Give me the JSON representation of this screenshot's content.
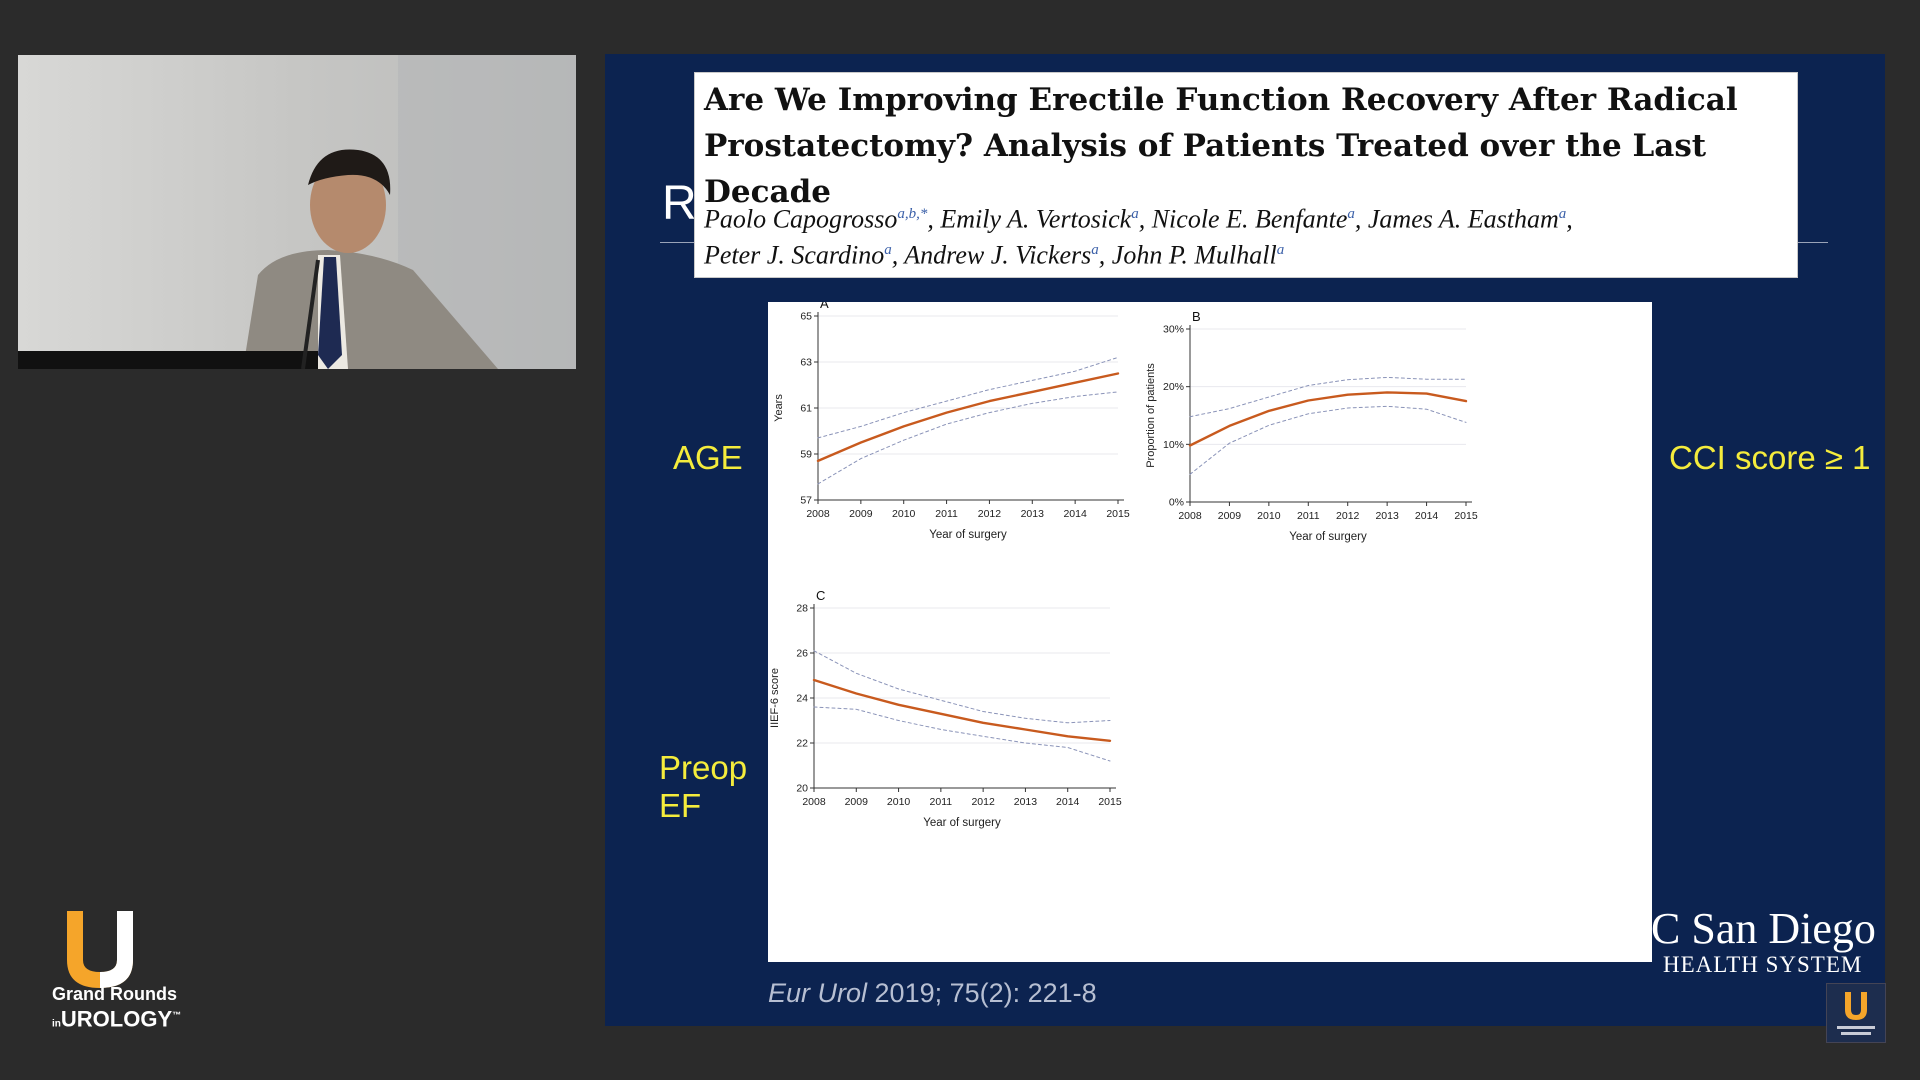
{
  "slide": {
    "heading_fragment": "R",
    "paper_title": "Are We Improving Erectile Function Recovery After Radical Prostatectomy? Analysis of Patients Treated over the Last Decade",
    "authors_line1": [
      {
        "name": "Paolo Capogrosso",
        "aff": "a,b,*"
      },
      {
        "name": "Emily A. Vertosick",
        "aff": "a"
      },
      {
        "name": "Nicole E. Benfante",
        "aff": "a"
      },
      {
        "name": "James A. Eastham",
        "aff": "a"
      }
    ],
    "authors_line2": [
      {
        "name": "Peter J. Scardino",
        "aff": "a"
      },
      {
        "name": "Andrew J. Vickers",
        "aff": "a"
      },
      {
        "name": "John P. Mulhall",
        "aff": "a"
      }
    ],
    "label_age": "AGE",
    "label_cci": "CCI score ≥ 1",
    "label_ef_line1": "Preop",
    "label_ef_line2": "EF",
    "citation_journal": "Eur Urol",
    "citation_rest": " 2019; 75(2): 221-8",
    "logo_line1": "C San Diego",
    "logo_line2": "HEALTH SYSTEM"
  },
  "branding": {
    "line1": "Grand Rounds",
    "line2_small": "in",
    "line2": "UROLOGY",
    "mark": "™",
    "accent_color": "#f5a52a"
  },
  "chart_data": [
    {
      "type": "line",
      "panel": "A",
      "xlabel": "Year of surgery",
      "ylabel": "Years",
      "x": [
        2008,
        2009,
        2010,
        2011,
        2012,
        2013,
        2014,
        2015
      ],
      "yticks": [
        "57",
        "59",
        "61",
        "63",
        "65"
      ],
      "ylim": [
        57,
        65
      ],
      "series": [
        {
          "role": "estimate",
          "values": [
            58.7,
            59.5,
            60.2,
            60.8,
            61.3,
            61.7,
            62.1,
            62.5
          ]
        },
        {
          "role": "ci_upper",
          "values": [
            59.7,
            60.2,
            60.8,
            61.3,
            61.8,
            62.2,
            62.6,
            63.2
          ]
        },
        {
          "role": "ci_lower",
          "values": [
            57.7,
            58.8,
            59.6,
            60.3,
            60.8,
            61.2,
            61.5,
            61.7
          ]
        }
      ],
      "grid": true,
      "colors": {
        "estimate": "#c85a1e",
        "ci": "#8a93b8"
      }
    },
    {
      "type": "line",
      "panel": "B",
      "xlabel": "Year of surgery",
      "ylabel": "Proportion of patients",
      "x": [
        2008,
        2009,
        2010,
        2011,
        2012,
        2013,
        2014,
        2015
      ],
      "yticks": [
        "0%",
        "10%",
        "20%",
        "30%"
      ],
      "ylim": [
        0,
        30
      ],
      "series": [
        {
          "role": "estimate",
          "values": [
            9.8,
            13.2,
            15.8,
            17.6,
            18.6,
            19.0,
            18.8,
            17.5
          ]
        },
        {
          "role": "ci_upper",
          "values": [
            14.8,
            16.2,
            18.2,
            20.2,
            21.2,
            21.6,
            21.3,
            21.3
          ]
        },
        {
          "role": "ci_lower",
          "values": [
            4.8,
            10.2,
            13.3,
            15.3,
            16.3,
            16.6,
            16.1,
            13.8
          ]
        }
      ],
      "grid": true,
      "colors": {
        "estimate": "#c85a1e",
        "ci": "#8a93b8"
      }
    },
    {
      "type": "line",
      "panel": "C",
      "xlabel": "Year of surgery",
      "ylabel": "IIEF-6 score",
      "x": [
        2008,
        2009,
        2010,
        2011,
        2012,
        2013,
        2014,
        2015
      ],
      "yticks": [
        "20",
        "22",
        "24",
        "26",
        "28"
      ],
      "ylim": [
        20,
        28
      ],
      "series": [
        {
          "role": "estimate",
          "values": [
            24.8,
            24.2,
            23.7,
            23.3,
            22.9,
            22.6,
            22.3,
            22.1
          ]
        },
        {
          "role": "ci_upper",
          "values": [
            26.1,
            25.1,
            24.4,
            23.9,
            23.4,
            23.1,
            22.9,
            23.0
          ]
        },
        {
          "role": "ci_lower",
          "values": [
            23.6,
            23.5,
            23.0,
            22.6,
            22.3,
            22.0,
            21.8,
            21.2
          ]
        }
      ],
      "grid": true,
      "colors": {
        "estimate": "#c85a1e",
        "ci": "#8a93b8"
      }
    }
  ]
}
